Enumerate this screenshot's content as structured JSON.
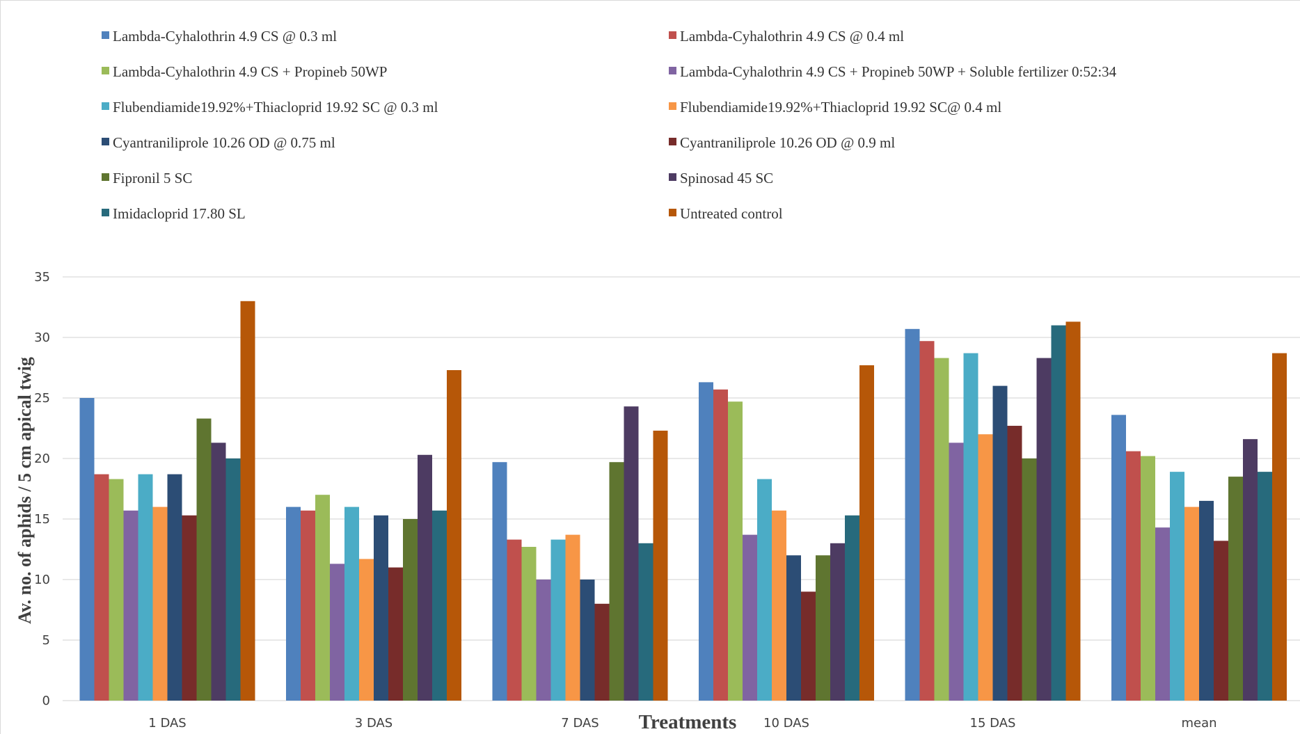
{
  "chart_data": {
    "type": "bar",
    "xlabel": "Treatments",
    "ylabel": "Av. no. of aphids / 5 cm apical twig",
    "ylim": [
      0,
      35
    ],
    "yticks": [
      0,
      5,
      10,
      15,
      20,
      25,
      30,
      35
    ],
    "grid": true,
    "legend_position": "top",
    "categories": [
      "1 DAS",
      "3 DAS",
      "7 DAS",
      "10 DAS",
      "15 DAS",
      "mean"
    ],
    "series": [
      {
        "name": "Lambda-Cyhalothrin 4.9 CS @ 0.3 ml",
        "color": "#4F81BD",
        "values": [
          25.0,
          16.0,
          19.7,
          26.3,
          30.7,
          23.6
        ]
      },
      {
        "name": "Lambda-Cyhalothrin 4.9 CS @ 0.4 ml",
        "color": "#C0504D",
        "values": [
          18.7,
          15.7,
          13.3,
          25.7,
          29.7,
          20.6
        ]
      },
      {
        "name": "Lambda-Cyhalothrin 4.9 CS + Propineb  50WP",
        "color": "#9BBB59",
        "values": [
          18.3,
          17.0,
          12.7,
          24.7,
          28.3,
          20.2
        ]
      },
      {
        "name": "Lambda-Cyhalothrin 4.9 CS + Propineb 50WP + Soluble fertilizer 0:52:34",
        "color": "#8064A2",
        "values": [
          15.7,
          11.3,
          10.0,
          13.7,
          21.3,
          14.3
        ]
      },
      {
        "name": " Flubendiamide19.92%+Thiacloprid 19.92 SC @ 0.3 ml",
        "color": "#4BACC6",
        "values": [
          18.7,
          16.0,
          13.3,
          18.3,
          28.7,
          18.9
        ]
      },
      {
        "name": " Flubendiamide19.92%+Thiacloprid 19.92 SC@ 0.4 ml",
        "color": "#F79646",
        "values": [
          16.0,
          11.7,
          13.7,
          15.7,
          22.0,
          16.0
        ]
      },
      {
        "name": "Cyantraniliprole 10.26 OD @ 0.75 ml",
        "color": "#2C4D75",
        "values": [
          18.7,
          15.3,
          10.0,
          12.0,
          26.0,
          16.5
        ]
      },
      {
        "name": "Cyantraniliprole 10.26 OD @ 0.9 ml",
        "color": "#772C2A",
        "values": [
          15.3,
          11.0,
          8.0,
          9.0,
          22.7,
          13.2
        ]
      },
      {
        "name": "Fipronil 5 SC",
        "color": "#5F7530",
        "values": [
          23.3,
          15.0,
          19.7,
          12.0,
          20.0,
          18.5
        ]
      },
      {
        "name": "Spinosad 45 SC",
        "color": "#4D3B62",
        "values": [
          21.3,
          20.3,
          24.3,
          13.0,
          28.3,
          21.6
        ]
      },
      {
        "name": "Imidacloprid 17.80 SL",
        "color": "#276A7C",
        "values": [
          20.0,
          15.7,
          13.0,
          15.3,
          31.0,
          18.9
        ]
      },
      {
        "name": "Untreated control",
        "color": "#B65708",
        "values": [
          33.0,
          27.3,
          22.3,
          27.7,
          31.3,
          28.7
        ]
      }
    ]
  }
}
